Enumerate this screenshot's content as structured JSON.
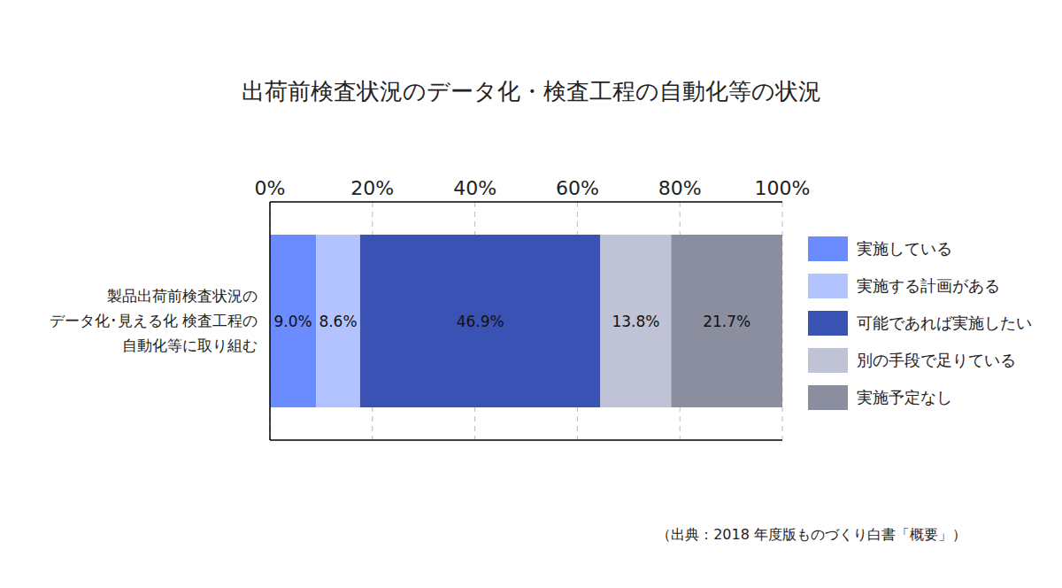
{
  "chart_data": {
    "type": "bar",
    "orientation": "horizontal",
    "stacked": true,
    "title": "出荷前検査状況のデータ化・検査工程の自動化等の状況",
    "categories": [
      "製品出荷前検査状況の\nデータ化･見える化 検査工程の\n自動化等に取り組む"
    ],
    "series": [
      {
        "name": "実施している",
        "color": "#6b8cff",
        "values": [
          9.0
        ],
        "value_labels": [
          "9.0%"
        ]
      },
      {
        "name": "実施する計画がある",
        "color": "#b3c3ff",
        "values": [
          8.6
        ],
        "value_labels": [
          "8.6%"
        ]
      },
      {
        "name": "可能であれば実施したい",
        "color": "#3a52b3",
        "values": [
          46.9
        ],
        "value_labels": [
          "46.9%"
        ]
      },
      {
        "name": "別の手段で足りている",
        "color": "#c0c3d6",
        "values": [
          13.8
        ],
        "value_labels": [
          "13.8%"
        ]
      },
      {
        "name": "実施予定なし",
        "color": "#8a8e9e",
        "values": [
          21.7
        ],
        "value_labels": [
          "21.7%"
        ]
      }
    ],
    "xlim": [
      0,
      100
    ],
    "xticks": [
      {
        "value": 0,
        "label": "0%"
      },
      {
        "value": 20,
        "label": "20%"
      },
      {
        "value": 40,
        "label": "40%"
      },
      {
        "value": 60,
        "label": "60%"
      },
      {
        "value": 80,
        "label": "80%"
      },
      {
        "value": 100,
        "label": "100%"
      }
    ],
    "grid": true,
    "data_labels": true,
    "legend": "right",
    "source": "（出典：2018 年度版ものづくり白書「概要」）"
  }
}
